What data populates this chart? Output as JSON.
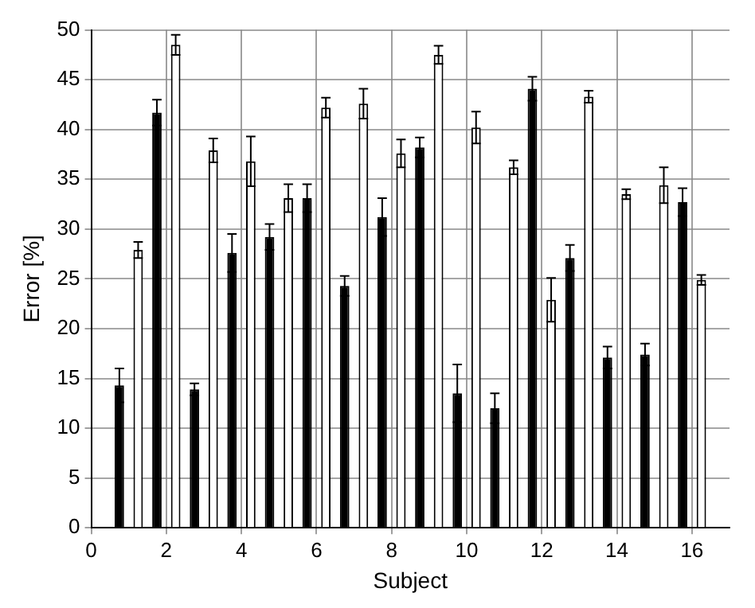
{
  "chart_data": {
    "type": "bar",
    "xlabel": "Subject",
    "ylabel": "Error [%]",
    "x": [
      1,
      2,
      3,
      4,
      5,
      6,
      7,
      8,
      9,
      10,
      11,
      12,
      13,
      14,
      15,
      16
    ],
    "series": [
      {
        "color": "#000000",
        "values": [
          14.3,
          41.7,
          13.9,
          27.6,
          29.2,
          33.1,
          24.3,
          31.2,
          38.2,
          13.5,
          12.0,
          44.1,
          27.1,
          17.1,
          17.4,
          32.7
        ],
        "errors": [
          1.7,
          1.3,
          0.6,
          1.9,
          1.3,
          1.4,
          1.0,
          1.9,
          1.0,
          2.9,
          1.5,
          1.2,
          1.3,
          1.1,
          1.1,
          1.4
        ]
      },
      {
        "color": "#ffffff",
        "values": [
          27.9,
          48.5,
          37.9,
          36.8,
          33.1,
          42.2,
          42.6,
          37.6,
          47.5,
          40.2,
          36.2,
          22.9,
          43.3,
          33.5,
          34.4,
          24.9
        ],
        "errors": [
          0.8,
          1.0,
          1.2,
          2.5,
          1.4,
          1.0,
          1.5,
          1.4,
          0.9,
          1.6,
          0.7,
          2.2,
          0.6,
          0.5,
          1.8,
          0.5
        ]
      }
    ],
    "xlim": [
      0,
      17
    ],
    "xticks": [
      0,
      2,
      4,
      6,
      8,
      10,
      12,
      14,
      16
    ],
    "ylim": [
      0,
      50
    ],
    "yticks": [
      0,
      5,
      10,
      15,
      20,
      25,
      30,
      35,
      40,
      45,
      50
    ],
    "grid": true,
    "legend": false
  }
}
